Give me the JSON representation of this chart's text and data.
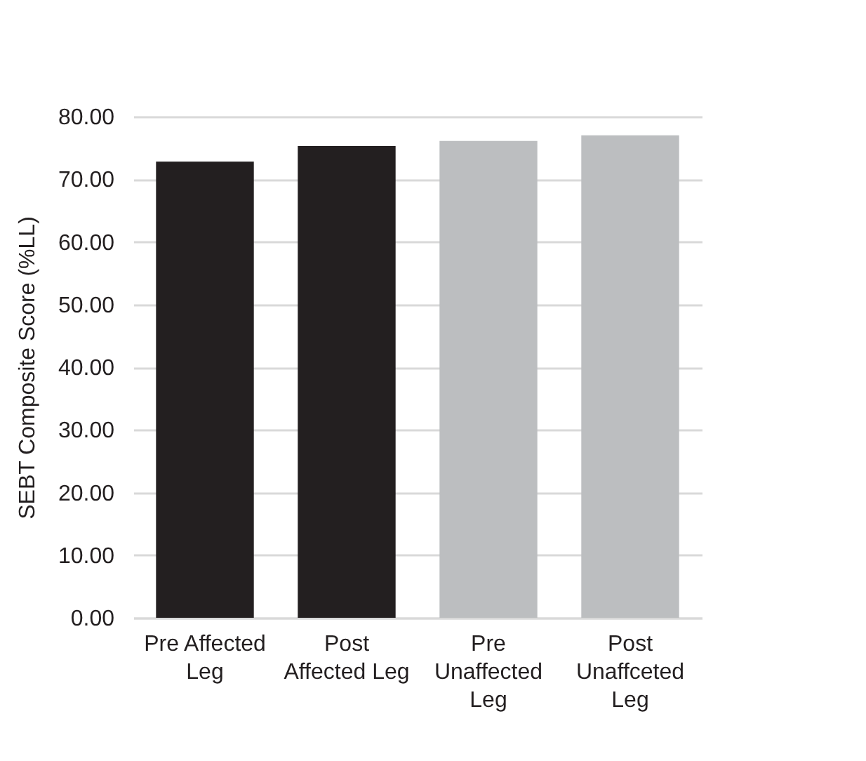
{
  "chart_data": {
    "type": "bar",
    "categories": [
      "Pre Affected Leg",
      "Post Affected Leg",
      "Pre Unaffected Leg",
      "Post Unaffceted Leg"
    ],
    "values": [
      72.8,
      75.3,
      76.1,
      77.0
    ],
    "colors": [
      "#231f20",
      "#231f20",
      "#bcbec0",
      "#bcbec0"
    ],
    "ylabel": "SEBT Composite Score (%LL)",
    "ylim": [
      0,
      80
    ],
    "yticks": [
      {
        "value": 0,
        "label": "0.00"
      },
      {
        "value": 10,
        "label": "10.00"
      },
      {
        "value": 20,
        "label": "20.00"
      },
      {
        "value": 30,
        "label": "30.00"
      },
      {
        "value": 40,
        "label": "40.00"
      },
      {
        "value": 50,
        "label": "50.00"
      },
      {
        "value": 60,
        "label": "60.00"
      },
      {
        "value": 70,
        "label": "70.00"
      },
      {
        "value": 80,
        "label": "80.00"
      }
    ],
    "grid": "y"
  }
}
